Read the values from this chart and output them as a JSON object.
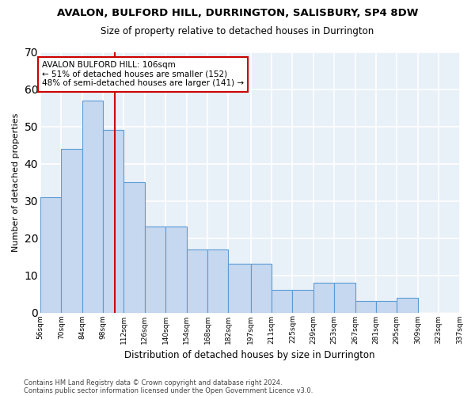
{
  "title": "AVALON, BULFORD HILL, DURRINGTON, SALISBURY, SP4 8DW",
  "subtitle": "Size of property relative to detached houses in Durrington",
  "xlabel": "Distribution of detached houses by size in Durrington",
  "ylabel": "Number of detached properties",
  "bar_values": [
    31,
    44,
    57,
    49,
    35,
    23,
    23,
    17,
    17,
    13,
    13,
    6,
    6,
    8,
    8,
    3,
    3,
    4,
    0,
    0
  ],
  "bin_labels": [
    "56sqm",
    "70sqm",
    "84sqm",
    "98sqm",
    "112sqm",
    "126sqm",
    "140sqm",
    "154sqm",
    "168sqm",
    "182sqm",
    "197sqm",
    "211sqm",
    "225sqm",
    "239sqm",
    "253sqm",
    "267sqm",
    "281sqm",
    "295sqm",
    "309sqm",
    "323sqm",
    "337sqm"
  ],
  "bar_color": "#c5d8ef",
  "bar_edge_color": "#5b9bd5",
  "vline_x": 106,
  "vline_color": "#cc0000",
  "annotation_text": "AVALON BULFORD HILL: 106sqm\n← 51% of detached houses are smaller (152)\n48% of semi-detached houses are larger (141) →",
  "annotation_box_color": "white",
  "annotation_box_edgecolor": "#cc0000",
  "ylim": [
    0,
    70
  ],
  "yticks": [
    0,
    10,
    20,
    30,
    40,
    50,
    60,
    70
  ],
  "bg_color": "#dde8f5",
  "plot_bg_color": "#e8f0f8",
  "grid_color": "white",
  "footnote1": "Contains HM Land Registry data © Crown copyright and database right 2024.",
  "footnote2": "Contains public sector information licensed under the Open Government Licence v3.0."
}
